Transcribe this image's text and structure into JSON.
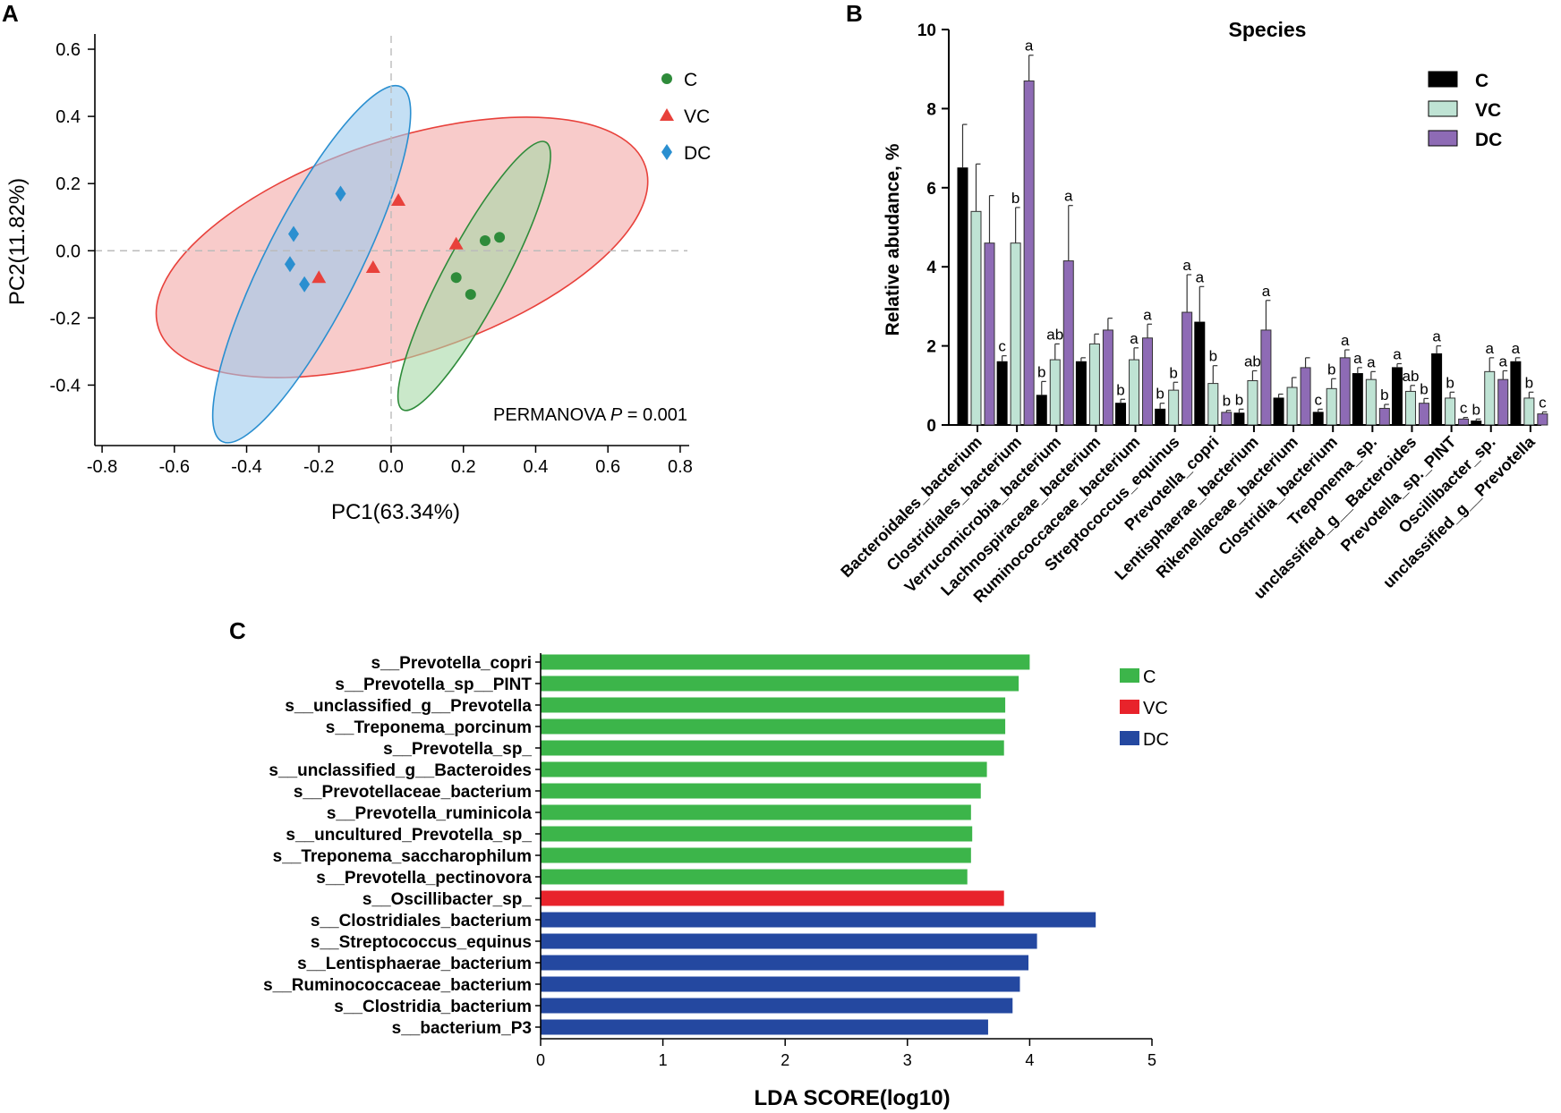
{
  "panels": {
    "a": "A",
    "b": "B",
    "c": "C"
  },
  "pca": {
    "xlabel": "PC1(63.34%)",
    "ylabel": "PC2(11.82%)",
    "annotation_prefix": "PERMANOVA ",
    "annotation_p": "P",
    "annotation_suffix": " = 0.001"
  },
  "species_chart": {
    "ylabel": "Relative abudance, %"
  },
  "chart_data": [
    {
      "type": "scatter",
      "title": "",
      "xlabel": "PC1(63.34%)",
      "ylabel": "PC2(11.82%)",
      "xlim": [
        -0.82,
        0.82
      ],
      "ylim": [
        -0.58,
        0.64
      ],
      "xticks": [
        -0.8,
        -0.6,
        -0.4,
        -0.2,
        0.0,
        0.2,
        0.4,
        0.6,
        0.8
      ],
      "xtick_labels": [
        "-0.8",
        "-0.6",
        "-0.4",
        "-0.2",
        "0.0",
        "0.2",
        "0.4",
        "0.6",
        "0.8"
      ],
      "yticks": [
        -0.4,
        -0.2,
        0.0,
        0.2,
        0.4,
        0.6
      ],
      "ytick_labels": [
        "-0.4",
        "-0.2",
        "0.0",
        "0.2",
        "0.4",
        "0.6"
      ],
      "series": [
        {
          "name": "C",
          "marker": "circle",
          "color": "#2e8b3a",
          "fill": "#a7d8a7",
          "points": [
            [
              0.26,
              0.03
            ],
            [
              0.3,
              0.04
            ],
            [
              0.18,
              -0.08
            ],
            [
              0.22,
              -0.13
            ]
          ],
          "ellipse": {
            "center": [
              0.23,
              -0.075
            ],
            "rx": 0.42,
            "ry": 0.09,
            "angle_deg": 61.9
          }
        },
        {
          "name": "VC",
          "marker": "triangle",
          "color": "#e8413b",
          "fill": "#f4a9a6",
          "points": [
            [
              0.02,
              0.15
            ],
            [
              0.18,
              0.02
            ],
            [
              -0.05,
              -0.05
            ],
            [
              -0.2,
              -0.08
            ]
          ],
          "ellipse": {
            "center": [
              0.03,
              0.01
            ],
            "rx": 0.71,
            "ry": 0.32,
            "angle_deg": 18.4
          }
        },
        {
          "name": "DC",
          "marker": "diamond",
          "color": "#2a8fd0",
          "fill": "#9cc9ec",
          "points": [
            [
              -0.14,
              0.17
            ],
            [
              -0.27,
              0.05
            ],
            [
              -0.28,
              -0.04
            ],
            [
              -0.24,
              -0.1
            ]
          ],
          "ellipse": {
            "center": [
              -0.22,
              -0.04
            ],
            "rx": 0.55,
            "ry": 0.14,
            "angle_deg": 63.2
          }
        }
      ],
      "annotation": "PERMANOVA P = 0.001"
    },
    {
      "type": "bar",
      "title": "Species",
      "xlabel": "",
      "ylabel": "Relative abudance, %",
      "ylim": [
        0,
        10
      ],
      "yticks": [
        0,
        2,
        4,
        6,
        8,
        10
      ],
      "ytick_labels": [
        "0",
        "2",
        "4",
        "6",
        "8",
        "10"
      ],
      "categories": [
        "Bacteroidales_bacterium",
        "Clostridiales_bacterium",
        "Verrucomicrobia_bacterium",
        "Lachnospiraceae_bacterium",
        "Ruminococcaceae_bacterium",
        "Streptococcus_equinus",
        "Prevotella_copri",
        "Lentisphaerae_bacterium",
        "Rikenellaceae_bacterium",
        "Clostridia_bacterium",
        "Treponema_sp.",
        "unclassified_g__Bacteroides",
        "Prevotella_sp._PINT",
        "Oscillibacter_sp.",
        "unclassified_g__Prevotella"
      ],
      "series": [
        {
          "name": "C",
          "color": "#000000",
          "values": [
            6.5,
            1.6,
            0.75,
            1.6,
            0.55,
            0.4,
            2.6,
            0.3,
            0.68,
            0.32,
            1.3,
            1.45,
            1.8,
            0.1,
            1.6
          ],
          "errors": [
            1.1,
            0.15,
            0.35,
            0.1,
            0.1,
            0.15,
            0.9,
            0.1,
            0.1,
            0.08,
            0.15,
            0.1,
            0.2,
            0.05,
            0.1
          ],
          "labels": [
            "",
            "c",
            "b",
            "",
            "b",
            "b",
            "a",
            "b",
            "",
            "c",
            "a",
            "a",
            "a",
            "b",
            "a"
          ]
        },
        {
          "name": "VC",
          "color": "#bfe3d4",
          "values": [
            5.4,
            4.6,
            1.65,
            2.05,
            1.65,
            0.88,
            1.05,
            1.12,
            0.95,
            0.92,
            1.15,
            0.85,
            0.68,
            1.35,
            0.68
          ],
          "errors": [
            1.2,
            0.9,
            0.4,
            0.25,
            0.3,
            0.2,
            0.45,
            0.25,
            0.25,
            0.25,
            0.2,
            0.15,
            0.15,
            0.35,
            0.15
          ],
          "labels": [
            "",
            "b",
            "ab",
            "",
            "a",
            "b",
            "b",
            "ab",
            "",
            "b",
            "a",
            "ab",
            "b",
            "a",
            "b"
          ]
        },
        {
          "name": "DC",
          "color": "#8e6bb5",
          "values": [
            4.6,
            8.7,
            4.15,
            2.4,
            2.2,
            2.85,
            0.32,
            2.4,
            1.45,
            1.7,
            0.42,
            0.55,
            0.15,
            1.15,
            0.28
          ],
          "errors": [
            1.2,
            0.65,
            1.4,
            0.3,
            0.35,
            0.95,
            0.05,
            0.75,
            0.25,
            0.2,
            0.1,
            0.12,
            0.04,
            0.22,
            0.05
          ],
          "labels": [
            "",
            "a",
            "a",
            "",
            "a",
            "a",
            "b",
            "a",
            "",
            "a",
            "b",
            "b",
            "c",
            "a",
            "c"
          ]
        }
      ]
    },
    {
      "type": "bar",
      "orientation": "horizontal",
      "title": "",
      "xlabel": "LDA SCORE(log10)",
      "ylabel": "",
      "xlim": [
        0,
        5
      ],
      "xticks": [
        0,
        1,
        2,
        3,
        4,
        5
      ],
      "xtick_labels": [
        "0",
        "1",
        "2",
        "3",
        "4",
        "5"
      ],
      "legend": [
        {
          "name": "C",
          "color": "#3cb54a"
        },
        {
          "name": "VC",
          "color": "#e8232b"
        },
        {
          "name": "DC",
          "color": "#2448a0"
        }
      ],
      "categories": [
        "s__Prevotella_copri",
        "s__Prevotella_sp__PINT",
        "s__unclassified_g__Prevotella",
        "s__Treponema_porcinum",
        "s__Prevotella_sp_",
        "s__unclassified_g__Bacteroides",
        "s__Prevotellaceae_bacterium",
        "s__Prevotella_ruminicola",
        "s__uncultured_Prevotella_sp_",
        "s__Treponema_saccharophilum",
        "s__Prevotella_pectinovora",
        "s__Oscillibacter_sp_",
        "s__Clostridiales_bacterium",
        "s__Streptococcus_equinus",
        "s__Lentisphaerae_bacterium",
        "s__Ruminococcaceae_bacterium",
        "s__Clostridia_bacterium",
        "s__bacterium_P3"
      ],
      "values": [
        4.0,
        3.91,
        3.8,
        3.8,
        3.79,
        3.65,
        3.6,
        3.52,
        3.53,
        3.52,
        3.49,
        3.79,
        4.54,
        4.06,
        3.99,
        3.92,
        3.86,
        3.66
      ],
      "groups": [
        "C",
        "C",
        "C",
        "C",
        "C",
        "C",
        "C",
        "C",
        "C",
        "C",
        "C",
        "VC",
        "DC",
        "DC",
        "DC",
        "DC",
        "DC",
        "DC"
      ]
    }
  ]
}
